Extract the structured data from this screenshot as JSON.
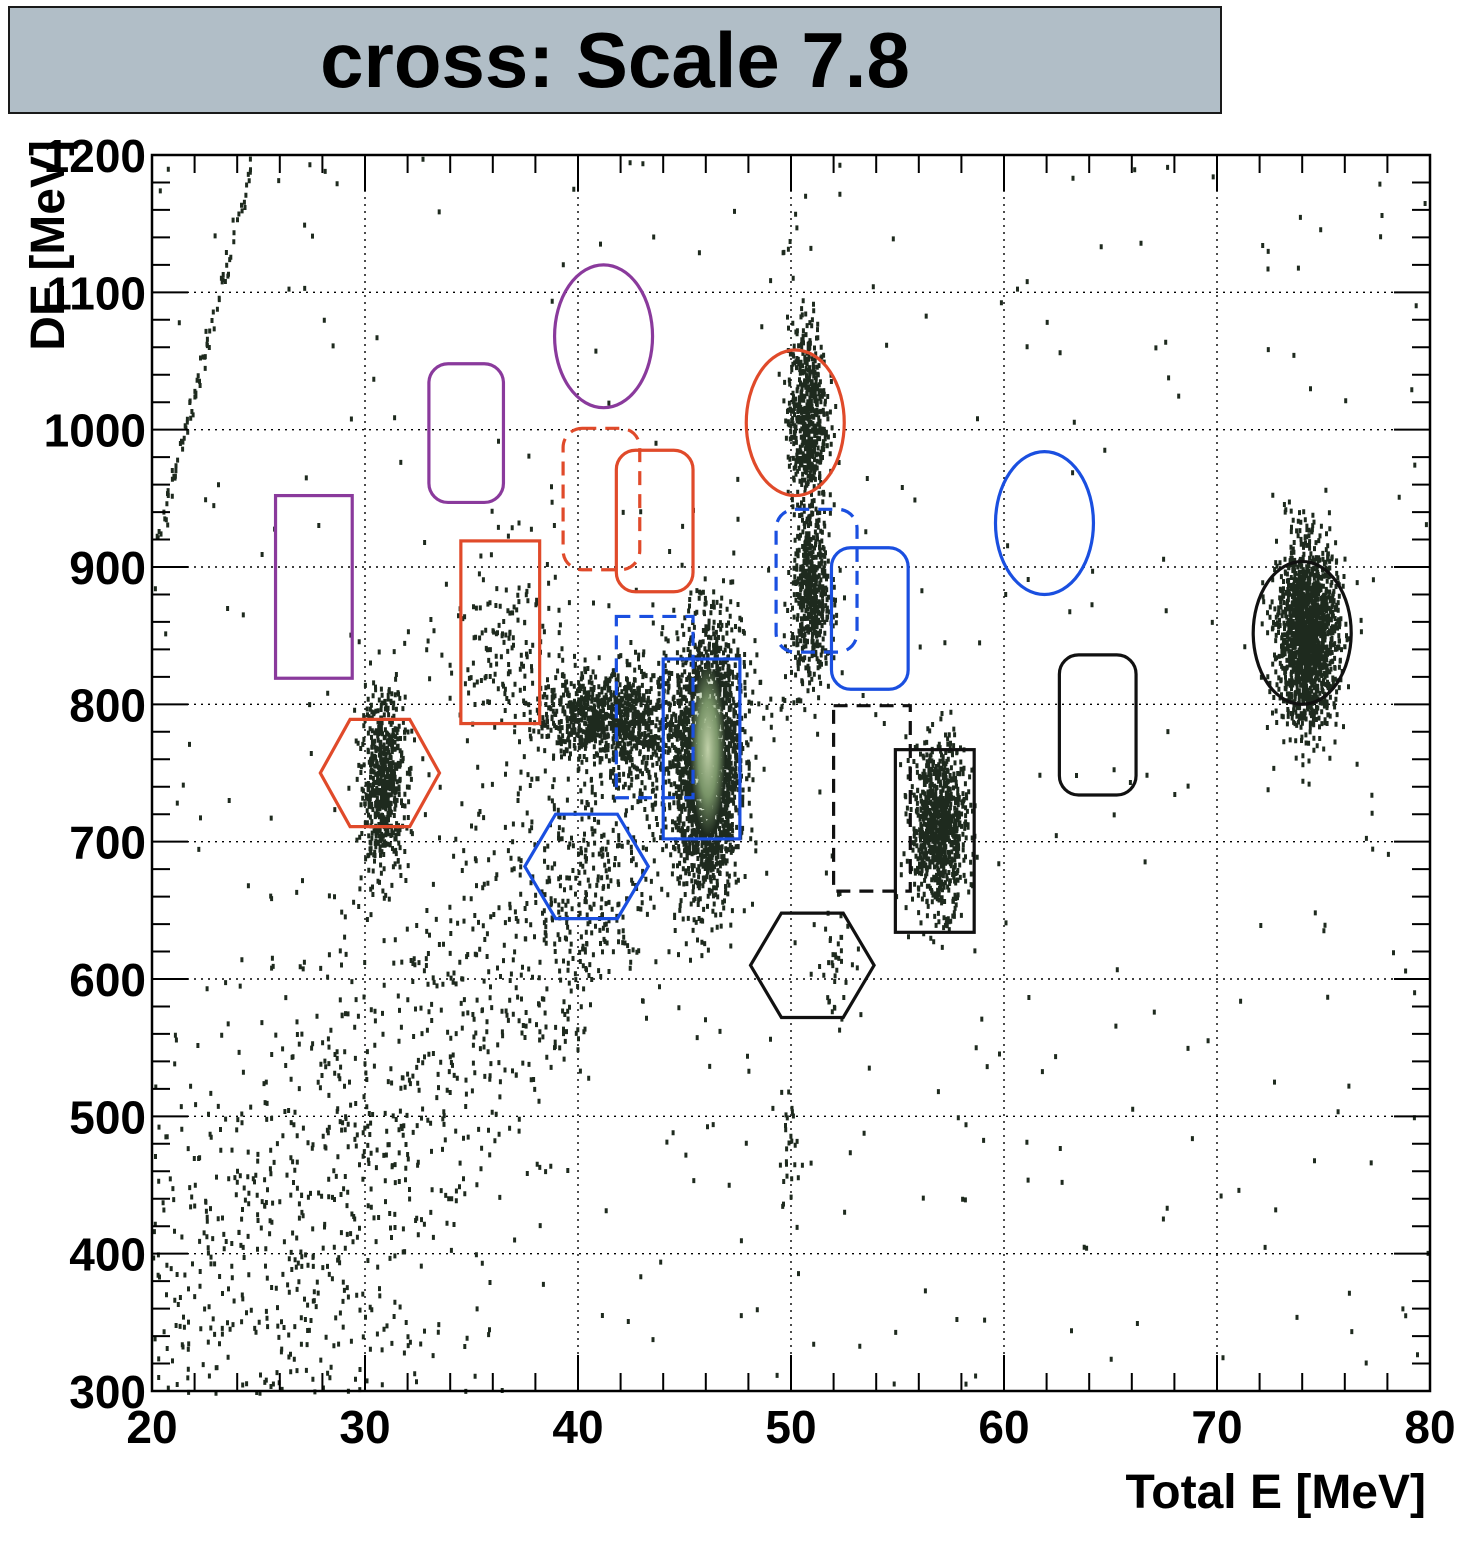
{
  "chart_data": {
    "type": "scatter",
    "title": "cross: Scale 7.8",
    "xlabel": "Total E [MeV]",
    "ylabel": "DE [MeV]",
    "xlim": [
      20,
      80
    ],
    "ylim": [
      300,
      1200
    ],
    "x_ticks": [
      20,
      30,
      40,
      50,
      60,
      70,
      80
    ],
    "y_ticks": [
      300,
      400,
      500,
      600,
      700,
      800,
      900,
      1000,
      1100,
      1200
    ],
    "grid": true,
    "colors": {
      "points": "#1e2a1e",
      "hot_center": "#8fae7a",
      "red": "#e04a2a",
      "purple": "#8a3a9c",
      "blue": "#1a4fe0",
      "black": "#111111",
      "title_bg": "#b1bec7"
    },
    "clusters": [
      {
        "cx": 30.8,
        "cy": 745,
        "sx": 0.5,
        "sy": 32,
        "n": 620,
        "tilt": 0.0
      },
      {
        "cx": 40.5,
        "cy": 792,
        "sx": 1.3,
        "sy": 16,
        "n": 520,
        "tilt": 0.0
      },
      {
        "cx": 42.7,
        "cy": 785,
        "sx": 1.0,
        "sy": 22,
        "n": 420,
        "tilt": 0.0
      },
      {
        "cx": 46.0,
        "cy": 760,
        "sx": 0.75,
        "sy": 48,
        "n": 2200,
        "tilt": 0.0
      },
      {
        "cx": 50.7,
        "cy": 1012,
        "sx": 0.45,
        "sy": 34,
        "n": 560,
        "tilt": 0.0
      },
      {
        "cx": 50.9,
        "cy": 880,
        "sx": 0.45,
        "sy": 32,
        "n": 520,
        "tilt": 0.0
      },
      {
        "cx": 56.9,
        "cy": 713,
        "sx": 0.65,
        "sy": 30,
        "n": 900,
        "tilt": 0.0
      },
      {
        "cx": 74.2,
        "cy": 852,
        "sx": 0.7,
        "sy": 32,
        "n": 1700,
        "tilt": 0.0
      },
      {
        "cx": 36.5,
        "cy": 840,
        "sx": 1.5,
        "sy": 40,
        "n": 160,
        "tilt": 0.0
      },
      {
        "cx": 40.5,
        "cy": 660,
        "sx": 1.8,
        "sy": 35,
        "n": 130,
        "tilt": 0.0
      },
      {
        "cx": 52.0,
        "cy": 615,
        "sx": 0.4,
        "sy": 25,
        "n": 40,
        "tilt": 0.0
      },
      {
        "cx": 49.8,
        "cy": 478,
        "sx": 0.3,
        "sy": 22,
        "n": 28,
        "tilt": 0.0
      }
    ],
    "gates": [
      {
        "shape": "ellipse",
        "color": "purple",
        "dash": false,
        "cx": 41.2,
        "cy": 1068,
        "rx": 2.3,
        "ry": 52
      },
      {
        "shape": "roundrect",
        "color": "purple",
        "dash": false,
        "x0": 33.0,
        "x1": 36.5,
        "y0": 947,
        "y1": 1048,
        "r": 12
      },
      {
        "shape": "rect",
        "color": "purple",
        "dash": false,
        "x0": 25.8,
        "x1": 29.4,
        "y0": 819,
        "y1": 952
      },
      {
        "shape": "roundrect",
        "color": "red",
        "dash": true,
        "x0": 39.3,
        "x1": 42.9,
        "y0": 898,
        "y1": 1001,
        "r": 12
      },
      {
        "shape": "roundrect",
        "color": "red",
        "dash": false,
        "x0": 41.8,
        "x1": 45.4,
        "y0": 882,
        "y1": 985,
        "r": 12
      },
      {
        "shape": "rect",
        "color": "red",
        "dash": false,
        "x0": 34.5,
        "x1": 38.2,
        "y0": 786,
        "y1": 919
      },
      {
        "shape": "hexagon",
        "color": "red",
        "dash": false,
        "cx": 30.7,
        "cy": 750,
        "rx": 2.8,
        "ry": 39
      },
      {
        "shape": "ellipse",
        "color": "red",
        "dash": false,
        "cx": 50.2,
        "cy": 1005,
        "rx": 2.3,
        "ry": 53
      },
      {
        "shape": "roundrect",
        "color": "blue",
        "dash": true,
        "x0": 41.8,
        "x1": 45.4,
        "y0": 732,
        "y1": 864,
        "r": 0
      },
      {
        "shape": "rect",
        "color": "blue",
        "dash": false,
        "x0": 44.0,
        "x1": 47.6,
        "y0": 702,
        "y1": 833
      },
      {
        "shape": "hexagon",
        "color": "blue",
        "dash": false,
        "cx": 40.4,
        "cy": 682,
        "rx": 2.9,
        "ry": 38
      },
      {
        "shape": "roundrect",
        "color": "blue",
        "dash": true,
        "x0": 49.3,
        "x1": 53.1,
        "y0": 838,
        "y1": 942,
        "r": 12
      },
      {
        "shape": "roundrect",
        "color": "blue",
        "dash": false,
        "x0": 51.9,
        "x1": 55.5,
        "y0": 811,
        "y1": 914,
        "r": 12
      },
      {
        "shape": "ellipse",
        "color": "blue",
        "dash": false,
        "cx": 61.9,
        "cy": 932,
        "rx": 2.3,
        "ry": 52
      },
      {
        "shape": "roundrect",
        "color": "black",
        "dash": true,
        "x0": 52.0,
        "x1": 55.6,
        "y0": 664,
        "y1": 799,
        "r": 0
      },
      {
        "shape": "rect",
        "color": "black",
        "dash": false,
        "x0": 54.9,
        "x1": 58.6,
        "y0": 634,
        "y1": 767
      },
      {
        "shape": "roundrect",
        "color": "black",
        "dash": false,
        "x0": 62.6,
        "x1": 66.2,
        "y0": 734,
        "y1": 836,
        "r": 12
      },
      {
        "shape": "hexagon",
        "color": "black",
        "dash": false,
        "cx": 51.0,
        "cy": 610,
        "rx": 2.9,
        "ry": 38
      },
      {
        "shape": "ellipse",
        "color": "black",
        "dash": false,
        "cx": 74.0,
        "cy": 852,
        "rx": 2.3,
        "ry": 52
      }
    ],
    "sparse_band": {
      "x0": 20,
      "y0": 300,
      "x1": 48,
      "y1": 830,
      "n": 1600
    },
    "edge_streak": {
      "x0": 20.2,
      "y0": 920,
      "x1": 24.7,
      "y1": 1200,
      "n": 90
    },
    "random_noise": {
      "n": 380
    }
  }
}
